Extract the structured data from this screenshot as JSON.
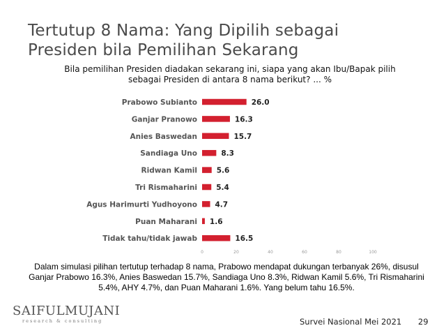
{
  "slide": {
    "title_line1": "Tertutup 8 Nama: Yang Dipilih sebagai",
    "title_line2": "Presiden bila Pemilihan Sekarang",
    "subtitle_line1": "Bila pemilihan Presiden diadakan sekarang ini, siapa yang akan Ibu/Bapak pilih",
    "subtitle_line2": "sebagai Presiden di antara 8 nama berikut? ... %",
    "description": "Dalam simulasi pilihan tertutup terhadap 8 nama, Prabowo mendapat dukungan terbanyak 26%, disusul Ganjar Prabowo 16.3%, Anies Baswedan 15.7%, Sandiaga Uno 8.3%, Ridwan Kamil 5.6%, Tri Rismaharini 5.4%, AHY 4.7%, dan Puan Maharani 1.6%. Yang belum tahu 16.5%.",
    "logo_name": "SAIFULMUJANI",
    "logo_tagline": "research & consulting",
    "footer_survey": "Survei Nasional Mei 2021",
    "page_number": "29"
  },
  "chart_data": {
    "type": "bar",
    "orientation": "horizontal",
    "categories": [
      "Prabowo Subianto",
      "Ganjar Pranowo",
      "Anies Baswedan",
      "Sandiaga Uno",
      "Ridwan Kamil",
      "Tri Rismaharini",
      "Agus Harimurti Yudhoyono",
      "Puan Maharani",
      "Tidak tahu/tidak jawab"
    ],
    "values": [
      26.0,
      16.3,
      15.7,
      8.3,
      5.6,
      5.4,
      4.7,
      1.6,
      16.5
    ],
    "value_labels": [
      "26.0",
      "16.3",
      "15.7",
      "8.3",
      "5.6",
      "5.4",
      "4.7",
      "1.6",
      "16.5"
    ],
    "xlim": [
      0,
      100
    ],
    "x_ticks": [
      "0",
      "20",
      "40",
      "60",
      "80",
      "100"
    ],
    "bar_color": "#d3202f",
    "grid": false,
    "legend": false
  }
}
